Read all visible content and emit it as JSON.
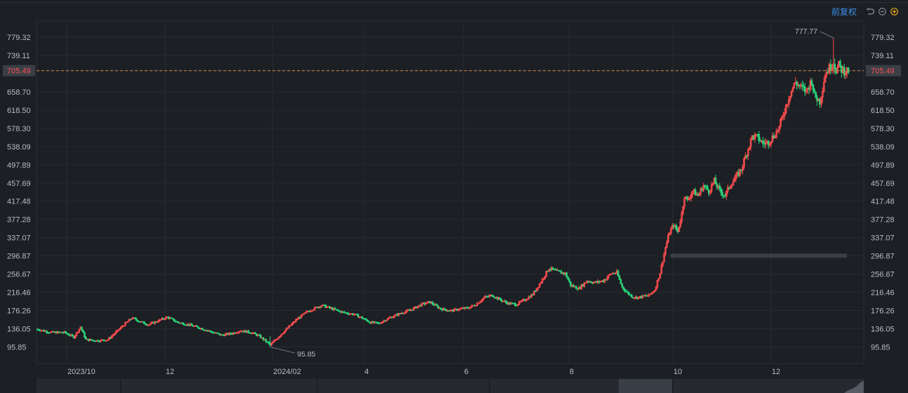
{
  "toolbar": {
    "adjust_label": "前复权",
    "icons": [
      "undo-icon",
      "zoom-out-icon",
      "zoom-in-icon"
    ],
    "accent_color": "#e6a817"
  },
  "colors": {
    "up": "#ff4d4f",
    "down": "#2bd67b",
    "grid": "#272b31",
    "price_line": "#d98c4a",
    "background": "#1c1f24"
  },
  "chart_data": {
    "type": "candlestick",
    "y_ticks": [
      "779.32",
      "739.11",
      "705.49",
      "658.70",
      "618.50",
      "578.30",
      "538.09",
      "497.89",
      "457.69",
      "417.48",
      "377.28",
      "337.07",
      "296.87",
      "256.67",
      "216.46",
      "176.26",
      "136.05",
      "95.85"
    ],
    "y_tick_values": [
      779.32,
      739.11,
      705.49,
      658.7,
      618.5,
      578.3,
      538.09,
      497.89,
      457.69,
      417.48,
      377.28,
      337.07,
      296.87,
      256.67,
      216.46,
      176.26,
      136.05,
      95.85
    ],
    "x_tick_labels": [
      "2023/10",
      "12",
      "2024/02",
      "4",
      "6",
      "8",
      "10",
      "12"
    ],
    "current_price": "705.49",
    "max_annotation": "777.77",
    "min_annotation": "95.85",
    "ylim": [
      60,
      800
    ],
    "gap_zone": [
      296.87,
      302
    ],
    "series_keypoints": [
      [
        0,
        135
      ],
      [
        10,
        128
      ],
      [
        20,
        128
      ],
      [
        27,
        118
      ],
      [
        32,
        140
      ],
      [
        36,
        112
      ],
      [
        44,
        110
      ],
      [
        52,
        112
      ],
      [
        58,
        128
      ],
      [
        64,
        145
      ],
      [
        70,
        160
      ],
      [
        76,
        152
      ],
      [
        82,
        145
      ],
      [
        88,
        152
      ],
      [
        96,
        162
      ],
      [
        104,
        150
      ],
      [
        112,
        145
      ],
      [
        120,
        138
      ],
      [
        128,
        130
      ],
      [
        136,
        122
      ],
      [
        144,
        126
      ],
      [
        150,
        132
      ],
      [
        158,
        128
      ],
      [
        164,
        120
      ],
      [
        170,
        106
      ],
      [
        172,
        100
      ],
      [
        178,
        118
      ],
      [
        184,
        135
      ],
      [
        192,
        158
      ],
      [
        200,
        175
      ],
      [
        210,
        188
      ],
      [
        218,
        180
      ],
      [
        226,
        172
      ],
      [
        234,
        168
      ],
      [
        240,
        160
      ],
      [
        246,
        150
      ],
      [
        252,
        148
      ],
      [
        260,
        160
      ],
      [
        268,
        170
      ],
      [
        276,
        178
      ],
      [
        284,
        190
      ],
      [
        290,
        195
      ],
      [
        298,
        180
      ],
      [
        306,
        176
      ],
      [
        312,
        180
      ],
      [
        318,
        182
      ],
      [
        324,
        190
      ],
      [
        330,
        205
      ],
      [
        336,
        210
      ],
      [
        342,
        200
      ],
      [
        348,
        192
      ],
      [
        354,
        190
      ],
      [
        360,
        200
      ],
      [
        366,
        212
      ],
      [
        372,
        240
      ],
      [
        378,
        270
      ],
      [
        384,
        262
      ],
      [
        390,
        258
      ],
      [
        394,
        232
      ],
      [
        400,
        225
      ],
      [
        406,
        242
      ],
      [
        412,
        238
      ],
      [
        418,
        242
      ],
      [
        424,
        258
      ],
      [
        428,
        260
      ],
      [
        432,
        228
      ],
      [
        436,
        215
      ],
      [
        440,
        206
      ],
      [
        444,
        205
      ],
      [
        448,
        208
      ],
      [
        452,
        210
      ],
      [
        456,
        222
      ],
      [
        460,
        260
      ],
      [
        464,
        315
      ],
      [
        467,
        350
      ],
      [
        470,
        365
      ],
      [
        473,
        350
      ],
      [
        476,
        390
      ],
      [
        478,
        430
      ],
      [
        480,
        418
      ],
      [
        484,
        440
      ],
      [
        488,
        430
      ],
      [
        492,
        452
      ],
      [
        496,
        440
      ],
      [
        500,
        462
      ],
      [
        504,
        440
      ],
      [
        508,
        430
      ],
      [
        512,
        455
      ],
      [
        516,
        470
      ],
      [
        520,
        488
      ],
      [
        524,
        525
      ],
      [
        528,
        560
      ],
      [
        532,
        558
      ],
      [
        536,
        545
      ],
      [
        540,
        548
      ],
      [
        544,
        562
      ],
      [
        548,
        580
      ],
      [
        552,
        620
      ],
      [
        556,
        655
      ],
      [
        560,
        680
      ],
      [
        564,
        668
      ],
      [
        568,
        660
      ],
      [
        572,
        685
      ],
      [
        574,
        650
      ],
      [
        578,
        638
      ],
      [
        582,
        700
      ],
      [
        586,
        715
      ],
      [
        588,
        725
      ],
      [
        590,
        708
      ],
      [
        592,
        716
      ],
      [
        594,
        708
      ],
      [
        596,
        705.49
      ]
    ]
  }
}
